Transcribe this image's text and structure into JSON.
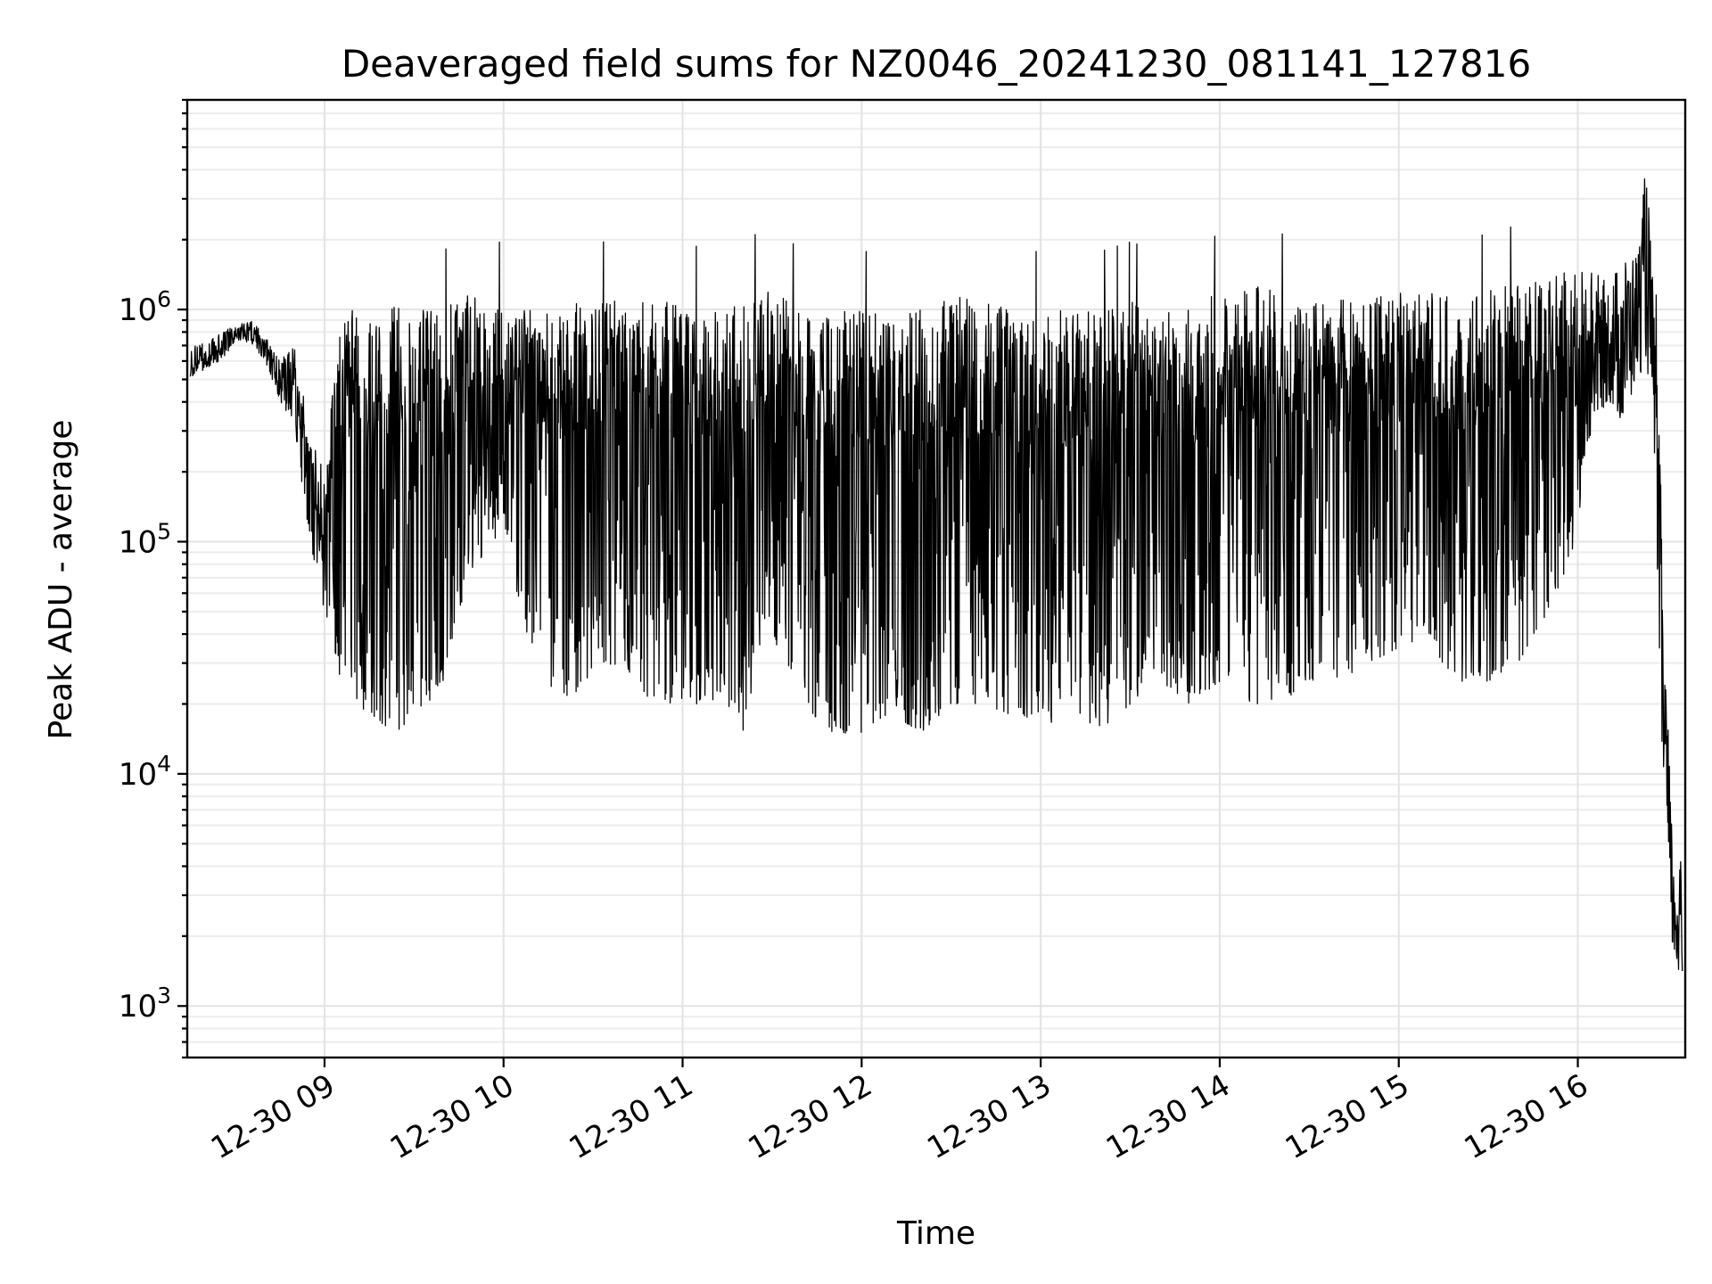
{
  "chart_data": {
    "type": "line",
    "title": "Deaveraged field sums for NZ0046_20241230_081141_127816",
    "xlabel": "Time",
    "ylabel": "Peak ADU - average",
    "yscale": "log",
    "xlim": [
      "2024-12-30T08:14",
      "2024-12-30T16:36"
    ],
    "ylim": [
      600,
      8000000
    ],
    "grid": true,
    "legend": "none",
    "line_color": "#000000",
    "x_ticks": [
      {
        "value": "2024-12-30T09:00",
        "label": "12-30 09"
      },
      {
        "value": "2024-12-30T10:00",
        "label": "12-30 10"
      },
      {
        "value": "2024-12-30T11:00",
        "label": "12-30 11"
      },
      {
        "value": "2024-12-30T12:00",
        "label": "12-30 12"
      },
      {
        "value": "2024-12-30T13:00",
        "label": "12-30 13"
      },
      {
        "value": "2024-12-30T14:00",
        "label": "12-30 14"
      },
      {
        "value": "2024-12-30T15:00",
        "label": "12-30 15"
      },
      {
        "value": "2024-12-30T16:00",
        "label": "12-30 16"
      }
    ],
    "y_ticks": [
      {
        "value": 1000,
        "base": "10",
        "exp": "3"
      },
      {
        "value": 10000,
        "base": "10",
        "exp": "4"
      },
      {
        "value": 100000,
        "base": "10",
        "exp": "5"
      },
      {
        "value": 1000000,
        "base": "10",
        "exp": "6"
      }
    ],
    "series": [
      {
        "x": [
          "2024-12-30T08:15",
          "2024-12-30T08:20",
          "2024-12-30T08:25",
          "2024-12-30T08:30",
          "2024-12-30T08:35",
          "2024-12-30T08:40",
          "2024-12-30T08:45",
          "2024-12-30T08:50",
          "2024-12-30T08:55",
          "2024-12-30T09:00",
          "2024-12-30T09:05",
          "2024-12-30T09:10",
          "2024-12-30T09:15",
          "2024-12-30T09:20",
          "2024-12-30T09:25",
          "2024-12-30T09:30",
          "2024-12-30T09:35",
          "2024-12-30T09:40",
          "2024-12-30T09:45",
          "2024-12-30T09:50",
          "2024-12-30T09:55",
          "2024-12-30T10:00",
          "2024-12-30T10:10",
          "2024-12-30T10:20",
          "2024-12-30T10:30",
          "2024-12-30T10:40",
          "2024-12-30T10:50",
          "2024-12-30T11:00",
          "2024-12-30T11:10",
          "2024-12-30T11:20",
          "2024-12-30T11:30",
          "2024-12-30T11:40",
          "2024-12-30T11:50",
          "2024-12-30T12:00",
          "2024-12-30T12:10",
          "2024-12-30T12:20",
          "2024-12-30T12:30",
          "2024-12-30T12:40",
          "2024-12-30T12:50",
          "2024-12-30T13:00",
          "2024-12-30T13:10",
          "2024-12-30T13:20",
          "2024-12-30T13:30",
          "2024-12-30T13:40",
          "2024-12-30T13:50",
          "2024-12-30T14:00",
          "2024-12-30T14:10",
          "2024-12-30T14:20",
          "2024-12-30T14:30",
          "2024-12-30T14:40",
          "2024-12-30T14:50",
          "2024-12-30T15:00",
          "2024-12-30T15:10",
          "2024-12-30T15:20",
          "2024-12-30T15:30",
          "2024-12-30T15:40",
          "2024-12-30T15:50",
          "2024-12-30T16:00",
          "2024-12-30T16:05",
          "2024-12-30T16:10",
          "2024-12-30T16:15",
          "2024-12-30T16:20",
          "2024-12-30T16:23",
          "2024-12-30T16:26",
          "2024-12-30T16:28",
          "2024-12-30T16:30",
          "2024-12-30T16:32",
          "2024-12-30T16:34",
          "2024-12-30T16:35"
        ],
        "upper": [
          700000,
          720000,
          800000,
          850000,
          900000,
          800000,
          600000,
          700000,
          300000,
          200000,
          1000000,
          1000000,
          1000000,
          1000000,
          1100000,
          1000000,
          1000000,
          1000000,
          1200000,
          1300000,
          1400000,
          1000000,
          1000000,
          1100000,
          1100000,
          1100000,
          1100000,
          1100000,
          1000000,
          1100000,
          1300000,
          1000000,
          1000000,
          1000000,
          1000000,
          1000000,
          1200000,
          1100000,
          1000000,
          1000000,
          1000000,
          1000000,
          1100000,
          1000000,
          1000000,
          1200000,
          1300000,
          1200000,
          1100000,
          1100000,
          1100000,
          1200000,
          1200000,
          1100000,
          1200000,
          1300000,
          1400000,
          1500000,
          1500000,
          1300000,
          1700000,
          1800000,
          4500000,
          800000,
          150000,
          20000,
          4000,
          4500,
          4000
        ],
        "lower": [
          500000,
          550000,
          600000,
          700000,
          700000,
          600000,
          400000,
          300000,
          100000,
          50000,
          25000,
          20000,
          18000,
          16000,
          15000,
          16000,
          20000,
          25000,
          50000,
          80000,
          90000,
          100000,
          30000,
          20000,
          25000,
          30000,
          20000,
          20000,
          20000,
          15000,
          40000,
          20000,
          15000,
          15000,
          18000,
          15000,
          20000,
          20000,
          18000,
          15000,
          20000,
          15000,
          20000,
          25000,
          20000,
          25000,
          20000,
          20000,
          25000,
          25000,
          30000,
          35000,
          35000,
          25000,
          25000,
          30000,
          50000,
          100000,
          300000,
          400000,
          300000,
          500000,
          600000,
          200000,
          10000,
          3000,
          1500,
          1200,
          1100
        ]
      }
    ]
  }
}
